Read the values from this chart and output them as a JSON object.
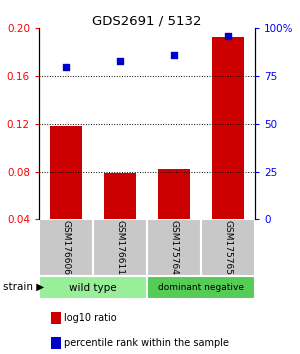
{
  "title": "GDS2691 / 5132",
  "samples": [
    "GSM176606",
    "GSM176611",
    "GSM175764",
    "GSM175765"
  ],
  "log10_ratio": [
    0.118,
    0.079,
    0.082,
    0.193
  ],
  "percentile_rank": [
    80,
    83,
    86,
    96
  ],
  "bar_color": "#cc0000",
  "dot_color": "#0000cc",
  "ylim_left": [
    0.04,
    0.2
  ],
  "ylim_right": [
    0,
    100
  ],
  "yticks_left": [
    0.04,
    0.08,
    0.12,
    0.16,
    0.2
  ],
  "yticks_right": [
    0,
    25,
    50,
    75,
    100
  ],
  "ytick_labels_right": [
    "0",
    "25",
    "50",
    "75",
    "100%"
  ],
  "grid_values": [
    0.08,
    0.12,
    0.16
  ],
  "group1_label": "wild type",
  "group2_label": "dominant negative",
  "group1_color": "#99ee99",
  "group2_color": "#55cc55",
  "gray_color": "#c8c8c8",
  "strain_label": "strain",
  "legend1": "log10 ratio",
  "legend2": "percentile rank within the sample",
  "bar_width": 0.6
}
